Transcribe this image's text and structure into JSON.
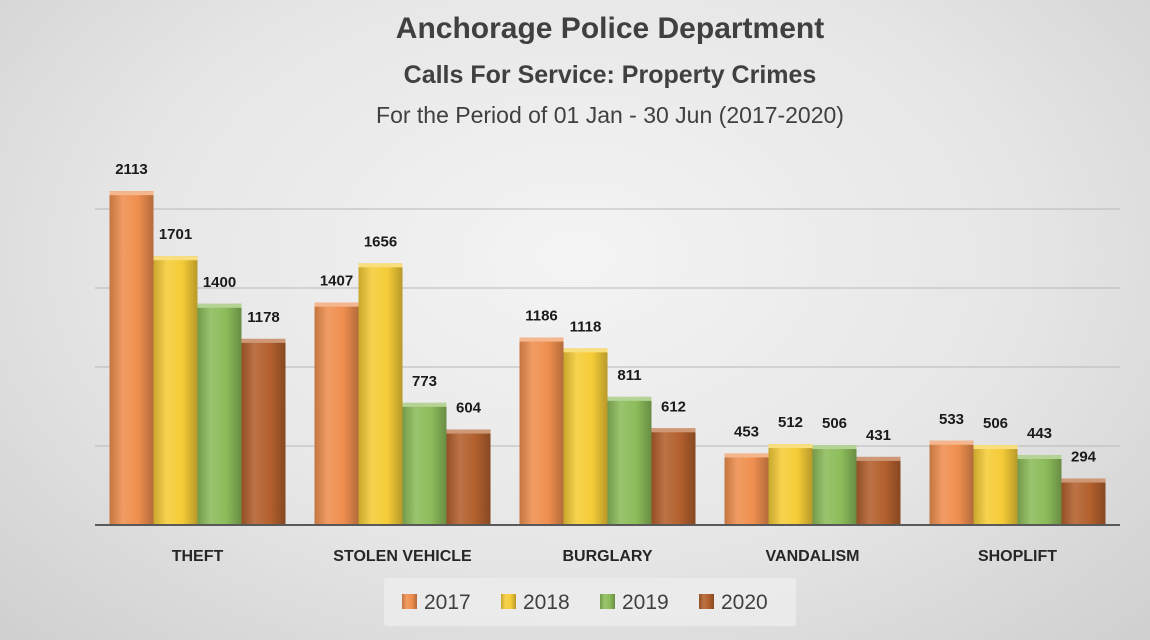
{
  "chart_data": {
    "type": "bar",
    "title": "Anchorage Police Department",
    "subtitle": "Calls For Service: Property Crimes",
    "period": "For the Period of 01 Jan - 30 Jun (2017-2020)",
    "categories": [
      "THEFT",
      "STOLEN VEHICLE",
      "BURGLARY",
      "VANDALISM",
      "SHOPLIFT"
    ],
    "series": [
      {
        "name": "2017",
        "color": "#ef8f4f",
        "values": [
          2113,
          1407,
          1186,
          453,
          533
        ]
      },
      {
        "name": "2018",
        "color": "#f5cc37",
        "values": [
          1701,
          1656,
          1118,
          512,
          506
        ]
      },
      {
        "name": "2019",
        "color": "#8cbc5a",
        "values": [
          1400,
          773,
          811,
          506,
          443
        ]
      },
      {
        "name": "2020",
        "color": "#b3602d",
        "values": [
          1178,
          604,
          612,
          431,
          294
        ]
      }
    ],
    "ylim": [
      0,
      2500
    ],
    "gridlines": [
      500,
      1000,
      1500,
      2000
    ],
    "grid": true,
    "data_labels": true,
    "legend_position": "bottom"
  }
}
